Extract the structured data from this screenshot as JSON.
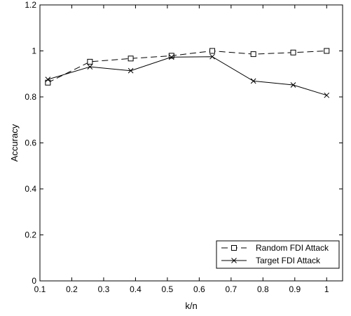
{
  "chart_data": {
    "type": "line",
    "title": "",
    "xlabel": "k/n",
    "ylabel": "Accuracy",
    "xlim": [
      0.1,
      1.05
    ],
    "ylim": [
      0,
      1.2
    ],
    "xticks": [
      "0.1",
      "0.2",
      "0.3",
      "0.4",
      "0.5",
      "0.6",
      "0.7",
      "0.8",
      "0.9",
      "1"
    ],
    "yticks": [
      "0",
      "0.2",
      "0.4",
      "0.6",
      "0.8",
      "1",
      "1.2"
    ],
    "grid": false,
    "legend_position": "bottom-right",
    "series": [
      {
        "name": "Random FDI Attack",
        "line_style": "dashed",
        "marker": "square",
        "color": "#000000",
        "x": [
          0.125,
          0.257,
          0.385,
          0.513,
          0.641,
          0.77,
          0.895,
          1.0
        ],
        "y": [
          0.862,
          0.953,
          0.967,
          0.979,
          1.0,
          0.986,
          0.993,
          1.0
        ]
      },
      {
        "name": "Target FDI Attack",
        "line_style": "solid",
        "marker": "x",
        "color": "#000000",
        "x": [
          0.125,
          0.257,
          0.385,
          0.513,
          0.641,
          0.77,
          0.895,
          1.0
        ],
        "y": [
          0.876,
          0.931,
          0.914,
          0.973,
          0.975,
          0.869,
          0.852,
          0.807
        ]
      }
    ]
  }
}
